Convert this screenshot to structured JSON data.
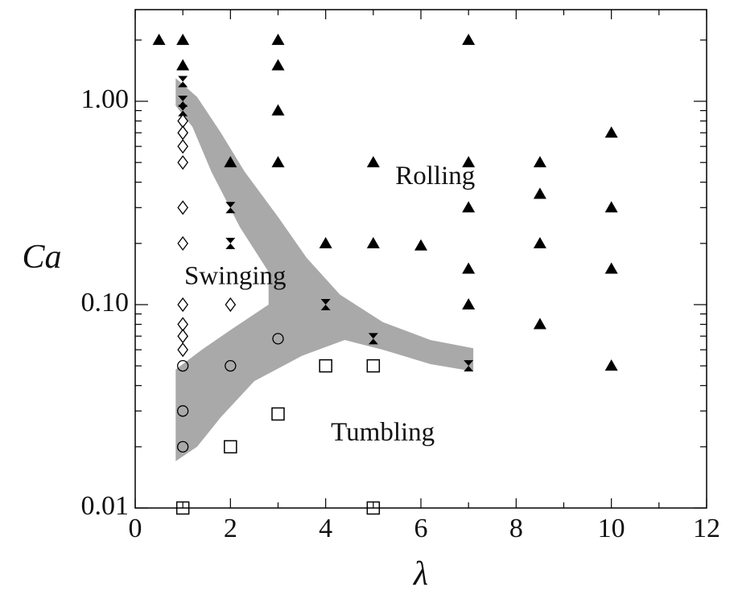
{
  "chart_data": {
    "type": "scatter",
    "title": "",
    "xlabel": "λ",
    "ylabel": "Ca",
    "xlim": [
      0,
      12
    ],
    "ylim": [
      0.01,
      2.5
    ],
    "yscale": "log",
    "grid": false,
    "x_ticks": [
      {
        "value": 0,
        "label": "0"
      },
      {
        "value": 2,
        "label": "2"
      },
      {
        "value": 4,
        "label": "4"
      },
      {
        "value": 6,
        "label": "6"
      },
      {
        "value": 8,
        "label": "8"
      },
      {
        "value": 10,
        "label": "10"
      },
      {
        "value": 12,
        "label": "12"
      }
    ],
    "y_ticks": [
      {
        "value": 0.01,
        "label": "0.01"
      },
      {
        "value": 0.1,
        "label": "0.10"
      },
      {
        "value": 1.0,
        "label": "1.00"
      }
    ],
    "region_labels": [
      {
        "text": "Rolling",
        "x": 6.3,
        "y": 0.42
      },
      {
        "text": "Swinging",
        "x": 2.1,
        "y": 0.135
      },
      {
        "text": "Tumbling",
        "x": 5.2,
        "y": 0.023
      }
    ],
    "series": [
      {
        "marker": "filled-triangle",
        "points": [
          [
            0.5,
            2.0
          ],
          [
            1.0,
            2.0
          ],
          [
            1.0,
            1.5
          ],
          [
            2.0,
            0.5
          ],
          [
            3.0,
            2.0
          ],
          [
            3.0,
            1.5
          ],
          [
            3.0,
            0.9
          ],
          [
            3.0,
            0.5
          ],
          [
            4.0,
            0.2
          ],
          [
            5.0,
            0.5
          ],
          [
            5.0,
            0.2
          ],
          [
            6.0,
            0.195
          ],
          [
            7.0,
            2.0
          ],
          [
            7.0,
            0.5
          ],
          [
            7.0,
            0.3
          ],
          [
            7.0,
            0.15
          ],
          [
            7.0,
            0.1
          ],
          [
            8.5,
            0.5
          ],
          [
            8.5,
            0.35
          ],
          [
            8.5,
            0.2
          ],
          [
            8.5,
            0.08
          ],
          [
            10.0,
            0.7
          ],
          [
            10.0,
            0.3
          ],
          [
            10.0,
            0.15
          ],
          [
            10.0,
            0.05
          ]
        ]
      },
      {
        "marker": "hourglass",
        "points": [
          [
            1.0,
            1.25
          ],
          [
            1.0,
            1.0
          ],
          [
            1.0,
            0.9
          ],
          [
            2.0,
            0.3
          ],
          [
            2.0,
            0.2
          ],
          [
            4.0,
            0.1
          ],
          [
            5.0,
            0.068
          ],
          [
            7.0,
            0.05
          ]
        ]
      },
      {
        "marker": "open-diamond",
        "points": [
          [
            1.0,
            0.8
          ],
          [
            1.0,
            0.7
          ],
          [
            1.0,
            0.6
          ],
          [
            1.0,
            0.5
          ],
          [
            1.0,
            0.3
          ],
          [
            1.0,
            0.2
          ],
          [
            1.0,
            0.1
          ],
          [
            1.0,
            0.08
          ],
          [
            1.0,
            0.07
          ],
          [
            1.0,
            0.06
          ],
          [
            2.0,
            0.1
          ]
        ]
      },
      {
        "marker": "open-circle",
        "points": [
          [
            1.0,
            0.05
          ],
          [
            1.0,
            0.03
          ],
          [
            1.0,
            0.02
          ],
          [
            2.0,
            0.05
          ],
          [
            3.0,
            0.068
          ]
        ]
      },
      {
        "marker": "open-square",
        "points": [
          [
            1.0,
            0.01
          ],
          [
            2.0,
            0.02
          ],
          [
            3.0,
            0.029
          ],
          [
            4.0,
            0.05
          ],
          [
            5.0,
            0.05
          ],
          [
            5.0,
            0.01
          ]
        ]
      }
    ],
    "shaded_band": {
      "color": "#a9a9a9",
      "boundary": [
        [
          0.85,
          1.3
        ],
        [
          1.3,
          1.05
        ],
        [
          1.8,
          0.7
        ],
        [
          2.3,
          0.45
        ],
        [
          3.0,
          0.27
        ],
        [
          3.6,
          0.17
        ],
        [
          4.3,
          0.112
        ],
        [
          5.2,
          0.082
        ],
        [
          6.2,
          0.067
        ],
        [
          7.1,
          0.061
        ],
        [
          7.1,
          0.047
        ],
        [
          6.2,
          0.051
        ],
        [
          5.2,
          0.06
        ],
        [
          4.4,
          0.067
        ],
        [
          3.5,
          0.056
        ],
        [
          2.5,
          0.042
        ],
        [
          1.8,
          0.028
        ],
        [
          1.3,
          0.02
        ],
        [
          0.85,
          0.017
        ],
        [
          0.85,
          0.048
        ],
        [
          1.4,
          0.06
        ],
        [
          2.0,
          0.075
        ],
        [
          2.8,
          0.1
        ],
        [
          2.8,
          0.145
        ],
        [
          2.2,
          0.24
        ],
        [
          1.6,
          0.45
        ],
        [
          1.2,
          0.75
        ],
        [
          0.85,
          0.95
        ]
      ]
    }
  }
}
